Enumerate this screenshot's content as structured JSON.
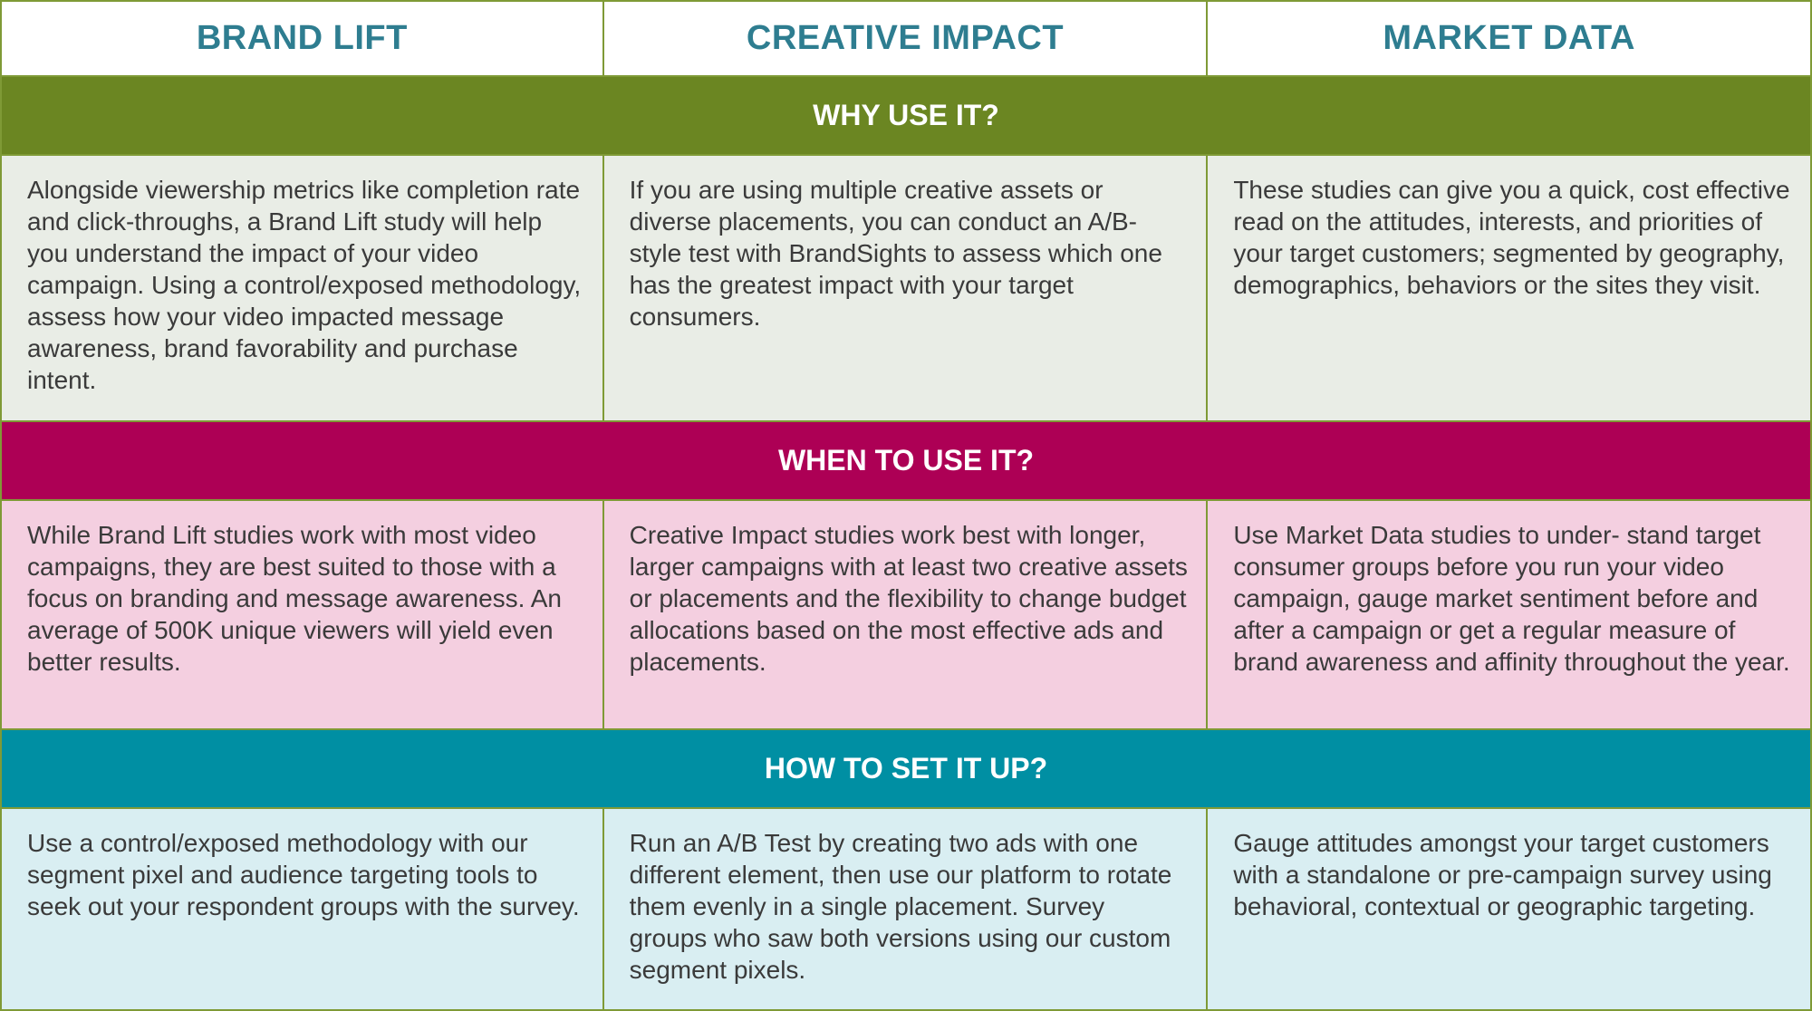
{
  "columns": [
    "BRAND LIFT",
    "CREATIVE IMPACT",
    "MARKET DATA"
  ],
  "sections": [
    {
      "title": "WHY USE IT?",
      "color": "#6b8622",
      "cells": [
        "Alongside viewership metrics like completion rate and click-throughs, a Brand Lift study will help you understand the impact of your video campaign. Using a control/exposed methodology, assess how your video impacted message awareness, brand favorability and purchase intent.",
        "If you are using multiple creative assets or diverse placements, you can conduct an A/B-style test with BrandSights to assess which one has the greatest impact with your target consumers.",
        "These studies can give you a quick, cost effective read on the attitudes, interests, and priorities of your target customers; segmented by geography, demographics, behaviors or the sites they visit."
      ]
    },
    {
      "title": "WHEN TO USE IT?",
      "color": "#ad0055",
      "cells": [
        "While Brand Lift studies work with most video campaigns, they are best suited to those with a focus on branding and message awareness. An average of 500K unique viewers will yield even better results.",
        "Creative Impact studies work best with longer, larger campaigns with at least two creative assets or placements and the flexibility to change budget allocations based on the most effective ads and placements.",
        "Use Market Data studies to under- stand target consumer groups before you run your video campaign, gauge market sentiment before and after a campaign or get a regular measure of brand awareness and affinity throughout the year."
      ]
    },
    {
      "title": "HOW TO SET IT UP?",
      "color": "#008fa3",
      "cells": [
        "Use a control/exposed methodology with our segment pixel and  audience targeting tools to seek out your respondent groups with the survey.",
        "Run an A/B Test by creating two ads with one different element, then use our platform to rotate them evenly in a single placement. Survey groups who saw both versions using our custom segment pixels.",
        "Gauge attitudes amongst your target customers with a standalone or pre-campaign survey using behavioral, contextual or geographic targeting."
      ]
    }
  ],
  "colors": {
    "header_text": "#2e7d90",
    "border": "#7f9a36",
    "why_bg": "#e9ede6",
    "when_bg": "#f4cfe0",
    "how_bg": "#d9eef2"
  }
}
